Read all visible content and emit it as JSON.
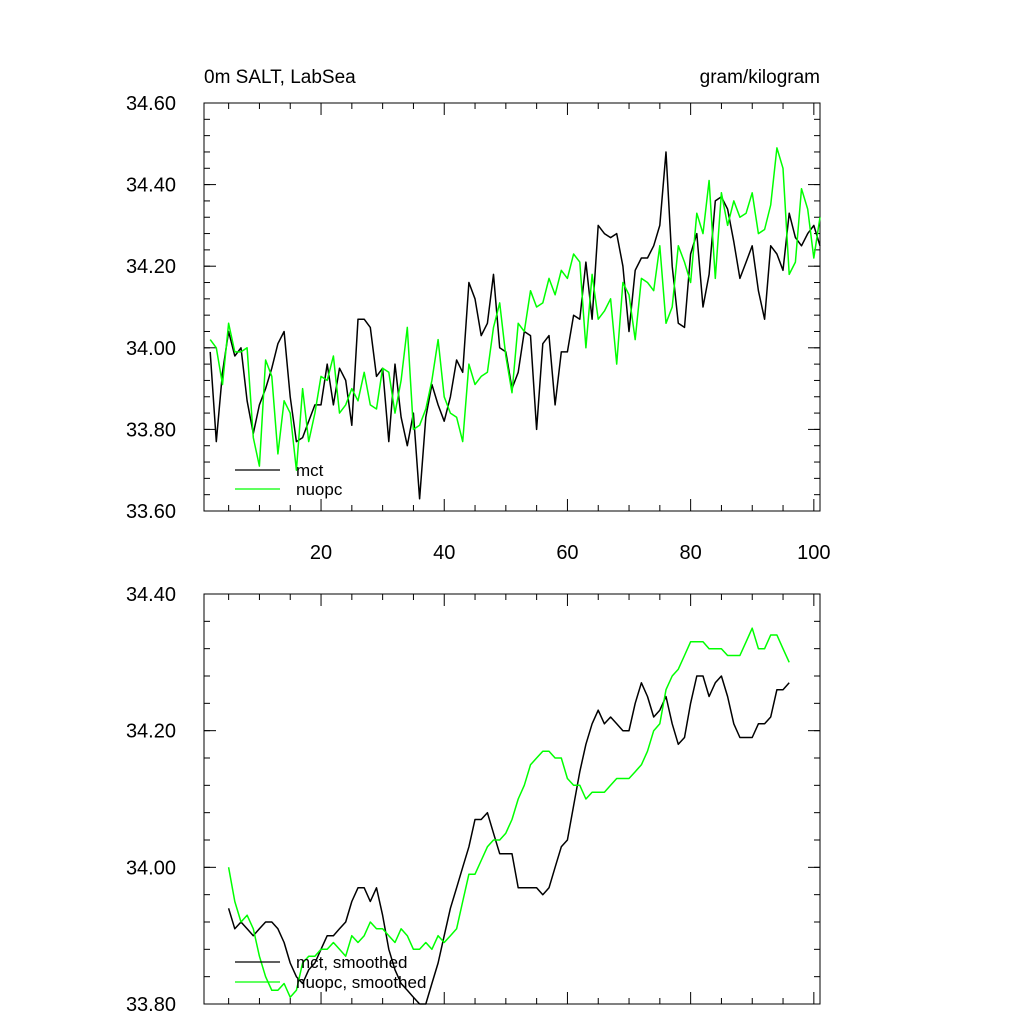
{
  "chart_data": [
    {
      "type": "line",
      "title_left": "0m SALT, LabSea",
      "title_right": "gram/kilogram",
      "xlim": [
        1,
        101
      ],
      "ylim": [
        33.6,
        34.6
      ],
      "x_ticks": [
        20,
        40,
        60,
        80,
        100
      ],
      "x_tick_labels": [
        "20",
        "40",
        "60",
        "80",
        "100"
      ],
      "y_ticks": [
        33.6,
        33.8,
        34.0,
        34.2,
        34.4,
        34.6
      ],
      "y_tick_labels": [
        "33.60",
        "33.80",
        "34.00",
        "34.20",
        "34.40",
        "34.60"
      ],
      "legend_position": "bottom-left",
      "series": [
        {
          "name": "mct",
          "color": "#000000",
          "x_start": 2,
          "values": [
            33.99,
            33.77,
            33.94,
            34.04,
            33.98,
            34.0,
            33.87,
            33.79,
            33.86,
            33.9,
            33.95,
            34.01,
            34.04,
            33.88,
            33.77,
            33.78,
            33.82,
            33.86,
            33.86,
            33.96,
            33.86,
            33.95,
            33.92,
            33.81,
            34.07,
            34.07,
            34.05,
            33.93,
            33.95,
            33.77,
            33.96,
            33.83,
            33.76,
            33.84,
            33.63,
            33.83,
            33.91,
            33.86,
            33.82,
            33.88,
            33.97,
            33.94,
            34.16,
            34.12,
            34.03,
            34.06,
            34.18,
            34.0,
            33.99,
            33.9,
            33.94,
            34.04,
            34.03,
            33.8,
            34.01,
            34.03,
            33.86,
            33.99,
            33.99,
            34.08,
            34.07,
            34.21,
            34.07,
            34.3,
            34.28,
            34.27,
            34.28,
            34.2,
            34.04,
            34.19,
            34.22,
            34.22,
            34.25,
            34.3,
            34.48,
            34.2,
            34.06,
            34.05,
            34.23,
            34.28,
            34.1,
            34.18,
            34.36,
            34.37,
            34.34,
            34.26,
            34.17,
            34.21,
            34.25,
            34.14,
            34.07,
            34.25,
            34.23,
            34.19,
            34.33,
            34.27,
            34.25,
            34.28,
            34.3,
            34.25
          ]
        },
        {
          "name": "nuopc",
          "color": "#00ff00",
          "x_start": 2,
          "values": [
            34.02,
            34.0,
            33.91,
            34.06,
            33.99,
            33.99,
            34.0,
            33.78,
            33.71,
            33.97,
            33.93,
            33.74,
            33.87,
            33.84,
            33.7,
            33.9,
            33.77,
            33.84,
            33.93,
            33.92,
            33.98,
            33.84,
            33.86,
            33.9,
            33.87,
            33.94,
            33.86,
            33.85,
            33.95,
            33.94,
            33.84,
            33.92,
            34.05,
            33.8,
            33.81,
            33.85,
            33.92,
            34.02,
            33.88,
            33.84,
            33.83,
            33.77,
            33.96,
            33.91,
            33.93,
            33.94,
            34.05,
            34.11,
            33.98,
            33.89,
            34.06,
            34.04,
            34.14,
            34.1,
            34.11,
            34.17,
            34.13,
            34.19,
            34.17,
            34.23,
            34.21,
            34.0,
            34.18,
            34.07,
            34.09,
            34.12,
            33.96,
            34.16,
            34.13,
            34.02,
            34.17,
            34.16,
            34.14,
            34.25,
            34.06,
            34.1,
            34.25,
            34.21,
            34.16,
            34.33,
            34.28,
            34.41,
            34.17,
            34.38,
            34.3,
            34.36,
            34.32,
            34.33,
            34.38,
            34.28,
            34.29,
            34.35,
            34.49,
            34.44,
            34.18,
            34.21,
            34.39,
            34.34,
            34.22,
            34.32
          ]
        }
      ]
    },
    {
      "type": "line",
      "xlim": [
        1,
        101
      ],
      "ylim": [
        33.8,
        34.4
      ],
      "x_ticks": [
        20,
        40,
        60,
        80,
        100
      ],
      "x_tick_labels": [],
      "y_ticks": [
        33.8,
        34.0,
        34.2,
        34.4
      ],
      "y_tick_labels": [
        "33.80",
        "34.00",
        "34.20",
        "34.40"
      ],
      "legend_position": "bottom-left",
      "series": [
        {
          "name": "mct, smoothed",
          "color": "#000000",
          "x_start": 5,
          "values": [
            33.94,
            33.91,
            33.92,
            33.91,
            33.9,
            33.91,
            33.92,
            33.92,
            33.91,
            33.89,
            33.86,
            33.84,
            33.83,
            33.85,
            33.86,
            33.88,
            33.9,
            33.9,
            33.91,
            33.92,
            33.95,
            33.97,
            33.97,
            33.95,
            33.97,
            33.93,
            33.88,
            33.85,
            33.83,
            33.82,
            33.81,
            33.8,
            33.8,
            33.83,
            33.86,
            33.9,
            33.94,
            33.97,
            34.0,
            34.03,
            34.07,
            34.07,
            34.08,
            34.05,
            34.02,
            34.02,
            34.02,
            33.97,
            33.97,
            33.97,
            33.97,
            33.96,
            33.97,
            34.0,
            34.03,
            34.04,
            34.09,
            34.14,
            34.18,
            34.21,
            34.23,
            34.21,
            34.22,
            34.21,
            34.2,
            34.2,
            34.24,
            34.27,
            34.25,
            34.22,
            34.23,
            34.25,
            34.21,
            34.18,
            34.19,
            34.24,
            34.28,
            34.28,
            34.25,
            34.27,
            34.28,
            34.25,
            34.21,
            34.19,
            34.19,
            34.19,
            34.21,
            34.21,
            34.22,
            34.26,
            34.26,
            34.27
          ]
        },
        {
          "name": "nuopc, smoothed",
          "color": "#00ff00",
          "x_start": 5,
          "values": [
            34.0,
            33.95,
            33.92,
            33.93,
            33.91,
            33.87,
            33.84,
            33.82,
            33.82,
            33.83,
            33.81,
            33.82,
            33.86,
            33.87,
            33.87,
            33.88,
            33.88,
            33.89,
            33.88,
            33.87,
            33.9,
            33.89,
            33.9,
            33.92,
            33.91,
            33.91,
            33.9,
            33.89,
            33.91,
            33.9,
            33.88,
            33.88,
            33.89,
            33.88,
            33.9,
            33.89,
            33.9,
            33.91,
            33.95,
            33.99,
            33.99,
            34.01,
            34.03,
            34.04,
            34.04,
            34.05,
            34.07,
            34.1,
            34.12,
            34.15,
            34.16,
            34.17,
            34.17,
            34.16,
            34.16,
            34.13,
            34.12,
            34.12,
            34.1,
            34.11,
            34.11,
            34.11,
            34.12,
            34.13,
            34.13,
            34.13,
            34.14,
            34.15,
            34.17,
            34.2,
            34.21,
            34.26,
            34.28,
            34.29,
            34.31,
            34.33,
            34.33,
            34.33,
            34.32,
            34.32,
            34.32,
            34.31,
            34.31,
            34.31,
            34.33,
            34.35,
            34.32,
            34.32,
            34.34,
            34.34,
            34.32,
            34.3
          ]
        }
      ]
    }
  ]
}
